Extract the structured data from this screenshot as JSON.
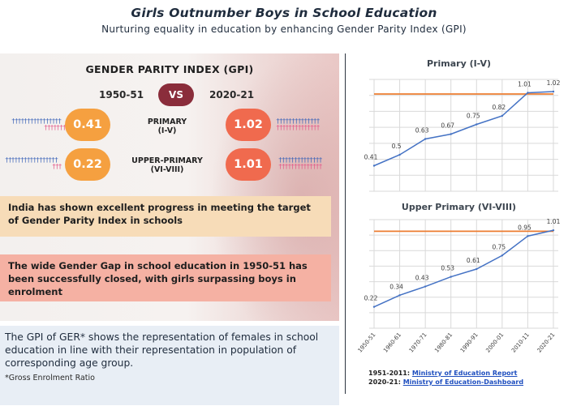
{
  "header": {
    "title": "Girls Outnumber Boys in School Education",
    "subtitle": "Nurturing equality in education by enhancing Gender Parity Index (GPI)"
  },
  "gpi_panel": {
    "heading": "GENDER PARITY INDEX (GPI)",
    "year_left": "1950-51",
    "vs": "VS",
    "year_right": "2020-21",
    "rows": [
      {
        "label_line1": "PRIMARY",
        "label_line2": "(I-V)",
        "value_1950": "0.41",
        "value_2021": "1.02"
      },
      {
        "label_line1": "UPPER-PRIMARY",
        "label_line2": "(VI-VIII)",
        "value_1950": "0.22",
        "value_2021": "1.01"
      }
    ],
    "colors": {
      "circle_1950": "#f5a040",
      "circle_2021": "#f06a4e",
      "vs_bg": "#8a2d3b",
      "male_icon": "#3b63b8",
      "female_icon": "#e35688"
    }
  },
  "bands": {
    "band1": "India has shown excellent progress in meeting the target of Gender Parity Index in schools",
    "band2": "The wide Gender Gap in school education in 1950-51 has been successfully closed, with girls surpassing boys in enrolment"
  },
  "ger_box": {
    "text": "The GPI of GER* shows the representation of females in school education in line with their representation in population of corresponding age group.",
    "footnote": "*Gross Enrolment Ratio"
  },
  "chart_data": [
    {
      "type": "line",
      "title": "Primary (I-V)",
      "x": [
        "1950-51",
        "1960-61",
        "1970-71",
        "1980-81",
        "1990-91",
        "2000-01",
        "2010-11",
        "2020-21"
      ],
      "data_labels": [
        "0.41",
        "0.5",
        "0.63",
        "0.67",
        "0.75",
        "0.82",
        "1.01",
        "1.02"
      ],
      "series": [
        {
          "values": [
            0.41,
            0.5,
            0.63,
            0.67,
            0.75,
            0.82,
            1.01,
            1.02
          ],
          "color": "#4472c4"
        },
        {
          "values": [
            1,
            1,
            1,
            1,
            1,
            1,
            1,
            1
          ],
          "color": "#ed7d31"
        }
      ],
      "ylim": [
        0.2,
        1.12
      ],
      "grid": true
    },
    {
      "type": "line",
      "title": "Upper Primary (VI-VIII)",
      "x": [
        "1950-51",
        "1960-61",
        "1970-71",
        "1980-81",
        "1990-91",
        "2000-01",
        "2010-11",
        "2020-21"
      ],
      "data_labels": [
        "0.22",
        "0.34",
        "0.43",
        "0.53",
        "0.61",
        "0.75",
        "0.95",
        "1.01"
      ],
      "series": [
        {
          "values": [
            0.22,
            0.34,
            0.43,
            0.53,
            0.61,
            0.75,
            0.95,
            1.01
          ],
          "color": "#4472c4"
        },
        {
          "values": [
            1,
            1,
            1,
            1,
            1,
            1,
            1,
            1
          ],
          "color": "#ed7d31"
        }
      ],
      "ylim": [
        0.0,
        1.12
      ],
      "grid": true
    }
  ],
  "sources": {
    "line1_prefix": "1951-2011:",
    "line1_link": "Ministry of Education Report",
    "line2_prefix": "2020-21:",
    "line2_link": "Ministry of Education-Dashboard"
  }
}
